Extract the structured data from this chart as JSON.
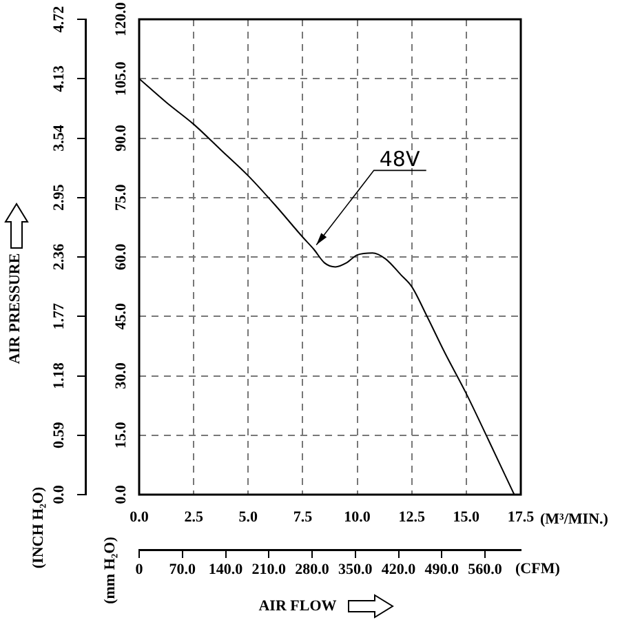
{
  "chart_data": {
    "type": "line",
    "xlabel": "(M³/MIN.)",
    "ylabel": "(mm H₂O)",
    "y2label": "(INCH H₂O)",
    "x2label": "(CFM)",
    "annotations": [
      "AIR PRESSURE",
      "AIR FLOW"
    ],
    "x": [
      0,
      1.25,
      2.5,
      3.75,
      5,
      6.25,
      7.5,
      8.0,
      8.5,
      9.0,
      9.5,
      10.0,
      10.7,
      11.3,
      12,
      12.5,
      13.2,
      14,
      15,
      16,
      17.2
    ],
    "series": [
      {
        "name": "48V",
        "color": "#000000",
        "values": [
          105,
          99,
          93.5,
          87,
          80.5,
          73,
          65,
          62,
          58.5,
          57.5,
          58.5,
          60.5,
          61,
          59.5,
          55.5,
          52.5,
          45,
          36,
          25.5,
          14,
          0
        ]
      }
    ],
    "xlim": [
      0,
      17.5
    ],
    "xticks": [
      {
        "value": 0,
        "label": "0.0"
      },
      2.5,
      {
        "value": 5,
        "label": "5.0"
      },
      7.5,
      {
        "value": 10,
        "label": "10.0"
      },
      12.5,
      {
        "value": 15,
        "label": "15.0"
      },
      17.5
    ],
    "x2lim": [
      0,
      618
    ],
    "x2ticks": [
      0,
      {
        "value": 70,
        "label": "70.0"
      },
      {
        "value": 140,
        "label": "140.0"
      },
      {
        "value": 210,
        "label": "210.0"
      },
      {
        "value": 280,
        "label": "280.0"
      },
      {
        "value": 350,
        "label": "350.0"
      },
      {
        "value": 420,
        "label": "420.0"
      },
      {
        "value": 490,
        "label": "490.0"
      },
      {
        "value": 560,
        "label": "560.0"
      }
    ],
    "ylim": [
      0,
      120
    ],
    "yticks": [
      {
        "value": 0,
        "label": "0.0"
      },
      {
        "value": 15,
        "label": "15.0"
      },
      {
        "value": 30,
        "label": "30.0"
      },
      {
        "value": 45,
        "label": "45.0"
      },
      {
        "value": 60,
        "label": "60.0"
      },
      {
        "value": 75,
        "label": "75.0"
      },
      {
        "value": 90,
        "label": "90.0"
      },
      {
        "value": 105,
        "label": "105.0"
      },
      {
        "value": 120,
        "label": "120.0"
      }
    ],
    "y2lim": [
      0,
      4.72
    ],
    "y2ticks": [
      {
        "value": 0,
        "label": "0.0"
      },
      0.59,
      1.18,
      1.77,
      2.36,
      2.95,
      3.54,
      4.13,
      4.72
    ],
    "grid": true,
    "legend": false,
    "marker": "none",
    "line_style": "solid"
  }
}
